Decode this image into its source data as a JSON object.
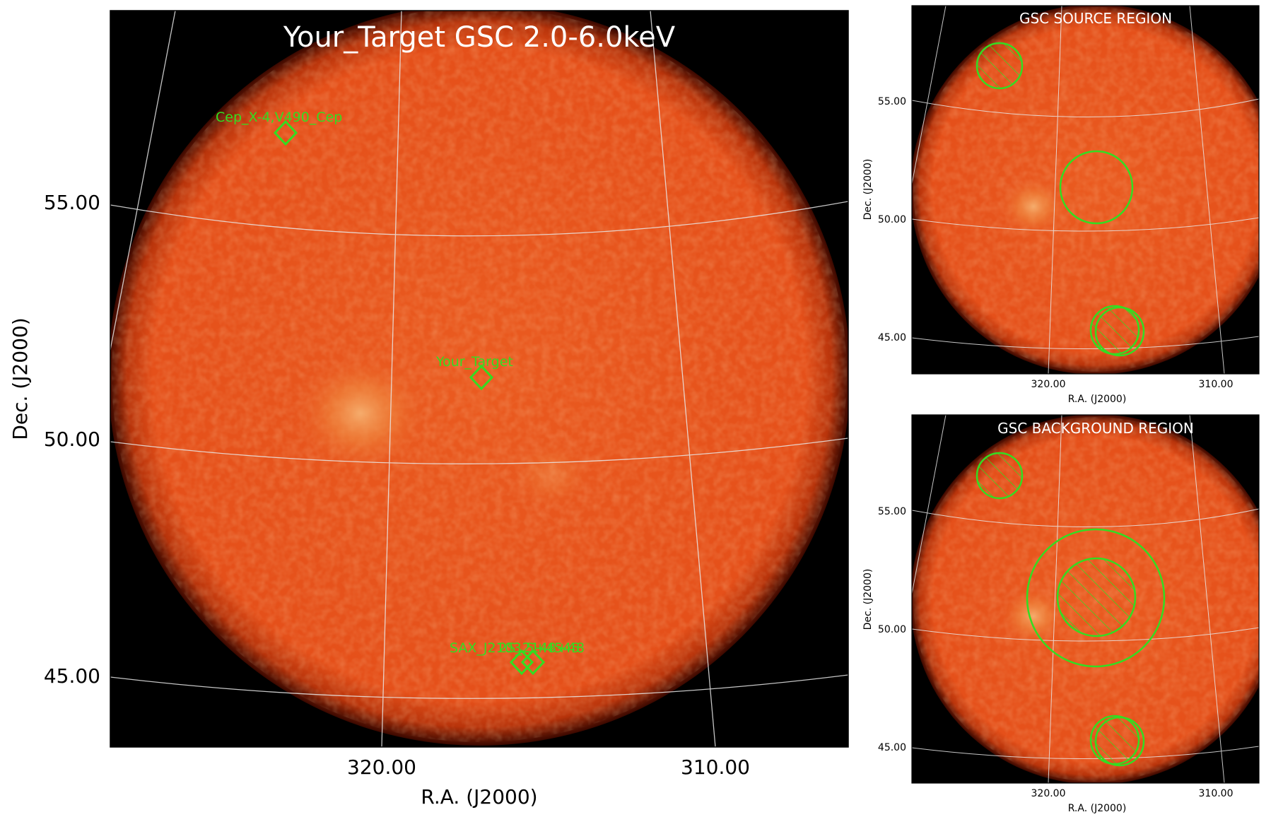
{
  "main_panel": {
    "title": "Your_Target GSC 2.0-6.0keV",
    "xlabel": "R.A. (J2000)",
    "ylabel": "Dec. (J2000)",
    "x_ticks": [
      "320.00",
      "310.00"
    ],
    "y_ticks": [
      "55.00",
      "50.00",
      "45.00"
    ],
    "sources": [
      {
        "label": "Cep_X-4,V490_Cep"
      },
      {
        "label": "Your_Target"
      },
      {
        "label": "SAX_J2103.5+4545"
      },
      {
        "label": "2S_2148+48"
      }
    ]
  },
  "source_panel": {
    "title": "GSC SOURCE REGION",
    "xlabel": "R.A. (J2000)",
    "ylabel": "Dec. (J2000)",
    "x_ticks": [
      "320.00",
      "310.00"
    ],
    "y_ticks": [
      "55.00",
      "50.00",
      "45.00"
    ]
  },
  "background_panel": {
    "title": "GSC BACKGROUND REGION",
    "xlabel": "R.A. (J2000)",
    "ylabel": "Dec. (J2000)",
    "x_ticks": [
      "320.00",
      "310.00"
    ],
    "y_ticks": [
      "55.00",
      "50.00",
      "45.00"
    ]
  },
  "colors": {
    "image_fill": "#e8561e",
    "image_edge": "#7a1a00",
    "background": "#000000",
    "region": "#33dd22",
    "grid": "#e8e8e8",
    "title_text": "#ffffff",
    "axis_text": "#000000"
  }
}
